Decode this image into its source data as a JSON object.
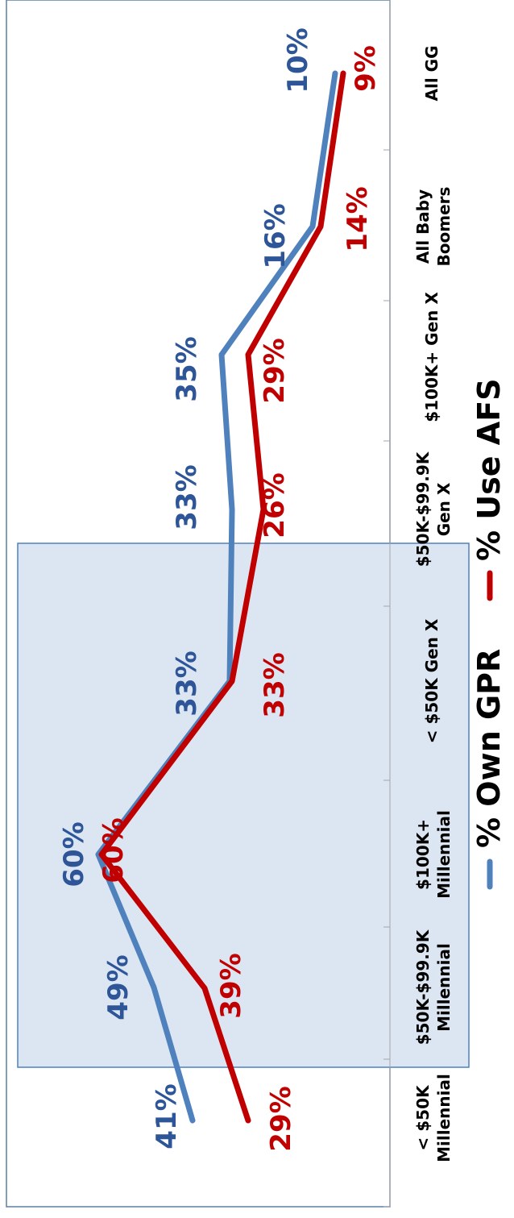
{
  "chart_data": {
    "type": "line",
    "orientation": "rotated-90-ccw",
    "categories": [
      [
        "< $50K",
        "Millennial"
      ],
      [
        "$50K-$99.9K",
        "Millennial"
      ],
      [
        "$100K+",
        "Millennial"
      ],
      [
        "< $50K Gen X"
      ],
      [
        "$50K-$99.9K",
        "Gen X"
      ],
      [
        "$100K+ Gen X"
      ],
      [
        "All Baby",
        "Boomers"
      ],
      [
        "All GG"
      ]
    ],
    "series": [
      {
        "name": "% Own GPR",
        "color": "#4F81BD",
        "label_color": "#2E5597",
        "values": [
          41,
          49,
          60,
          33,
          33,
          35,
          16,
          10
        ],
        "labels": [
          "41%",
          "49%",
          "60%",
          "33%",
          "33%",
          "35%",
          "16%",
          "10%"
        ]
      },
      {
        "name": "% Use AFS",
        "color": "#C00000",
        "label_color": "#C00000",
        "values": [
          29,
          39,
          60,
          33,
          26,
          29,
          14,
          9
        ],
        "labels": [
          "29%",
          "39%",
          "60%",
          "33%",
          "26%",
          "29%",
          "14%",
          "9%"
        ]
      }
    ],
    "highlight": {
      "from_category": 1,
      "to_category": 3,
      "color": "#DCE6F2"
    },
    "ylim": [
      0,
      75
    ],
    "grid": false,
    "legend_position": "bottom"
  }
}
